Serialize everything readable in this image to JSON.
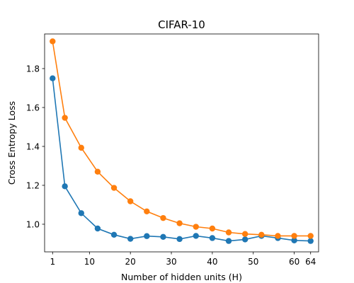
{
  "chart_data": {
    "type": "line",
    "title": "CIFAR-10",
    "xlabel": "Number of hidden units (H)",
    "ylabel": "Cross Entropy Loss",
    "x": [
      1,
      4,
      8,
      12,
      16,
      20,
      24,
      28,
      32,
      36,
      40,
      44,
      48,
      52,
      56,
      60,
      64
    ],
    "xlim": [
      -0.95,
      65.95
    ],
    "ylim": [
      0.858,
      1.978
    ],
    "xticks": [
      1,
      10,
      20,
      30,
      40,
      50,
      60,
      64
    ],
    "yticks": [
      1.0,
      1.2,
      1.4,
      1.6,
      1.8
    ],
    "ytick_labels": [
      "1.0",
      "1.2",
      "1.4",
      "1.6",
      "1.8"
    ],
    "grid": false,
    "series": [
      {
        "color": "#1f77b4",
        "values": [
          1.75,
          1.195,
          1.057,
          0.978,
          0.946,
          0.925,
          0.939,
          0.935,
          0.924,
          0.94,
          0.929,
          0.914,
          0.922,
          0.94,
          0.929,
          0.917,
          0.914
        ]
      },
      {
        "color": "#ff7f0e",
        "values": [
          1.94,
          1.547,
          1.393,
          1.27,
          1.187,
          1.118,
          1.066,
          1.032,
          1.005,
          0.987,
          0.978,
          0.958,
          0.95,
          0.946,
          0.94,
          0.94,
          0.94
        ]
      }
    ]
  }
}
